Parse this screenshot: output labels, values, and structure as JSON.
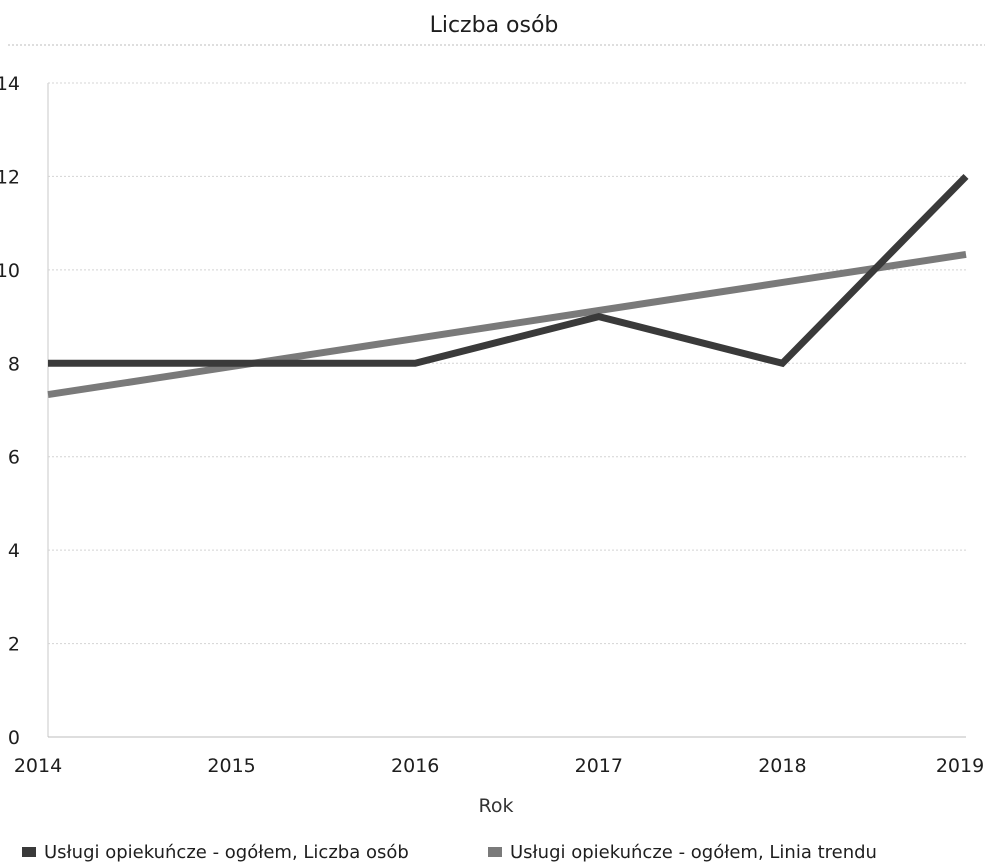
{
  "chart_data": {
    "type": "line",
    "title": "Liczba osób",
    "xlabel": "Rok",
    "ylabel": "",
    "x": [
      2014,
      2015,
      2016,
      2017,
      2018,
      2019
    ],
    "x_ticks": [
      "2014",
      "2015",
      "2016",
      "2017",
      "2018",
      "2019"
    ],
    "ylim": [
      0,
      14
    ],
    "y_ticks": [
      "0",
      "2",
      "4",
      "6",
      "8",
      "10",
      "12",
      "14"
    ],
    "grid": true,
    "legend_position": "bottom",
    "series": [
      {
        "name": "Usługi opiekuńcze - ogółem, Liczba osób",
        "color": "#3a3a3a",
        "values": [
          8,
          8,
          8,
          9,
          8,
          12
        ]
      },
      {
        "name": "Usługi opiekuńcze - ogółem, Linia trendu",
        "color": "#7a7a7a",
        "values": [
          7.33,
          7.93,
          8.53,
          9.13,
          9.73,
          10.33
        ]
      }
    ]
  }
}
